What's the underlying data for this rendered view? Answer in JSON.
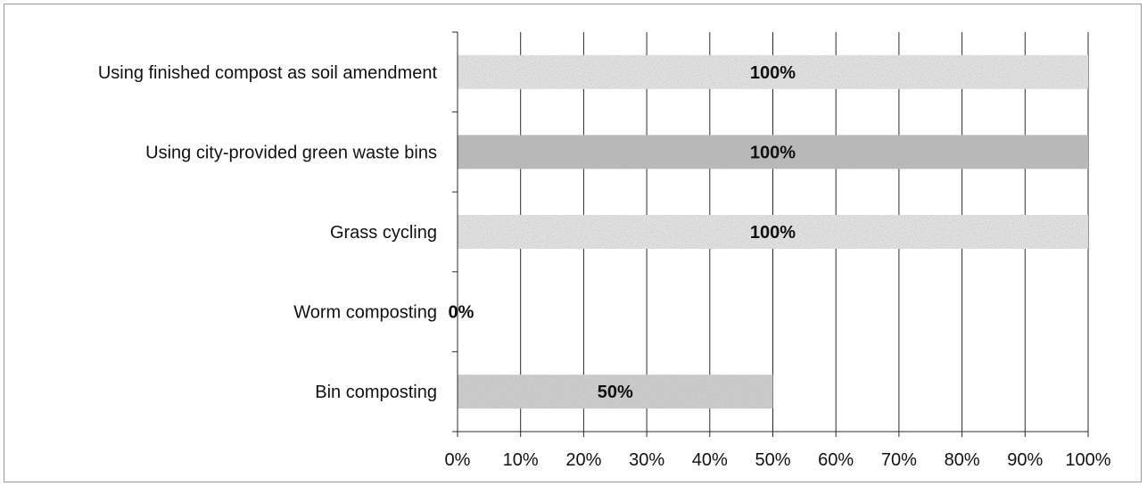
{
  "chart_data": {
    "type": "bar",
    "orientation": "horizontal",
    "title": "",
    "xlabel": "",
    "ylabel": "",
    "xlim": [
      0,
      100
    ],
    "x_ticks": [
      "0%",
      "10%",
      "20%",
      "30%",
      "40%",
      "50%",
      "60%",
      "70%",
      "80%",
      "90%",
      "100%"
    ],
    "grid": "vertical",
    "categories": [
      "Using finished compost as soil amendment",
      "Using city-provided green waste bins",
      "Grass cycling",
      "Worm composting",
      "Bin composting"
    ],
    "values": [
      100,
      100,
      100,
      0,
      50
    ],
    "data_labels": [
      "100%",
      "100%",
      "100%",
      "0%",
      "50%"
    ],
    "bar_colors": [
      "#e3e3e3",
      "#b9b9b9",
      "#e3e3e3",
      "#e3e3e3",
      "#cdcdcd"
    ]
  }
}
